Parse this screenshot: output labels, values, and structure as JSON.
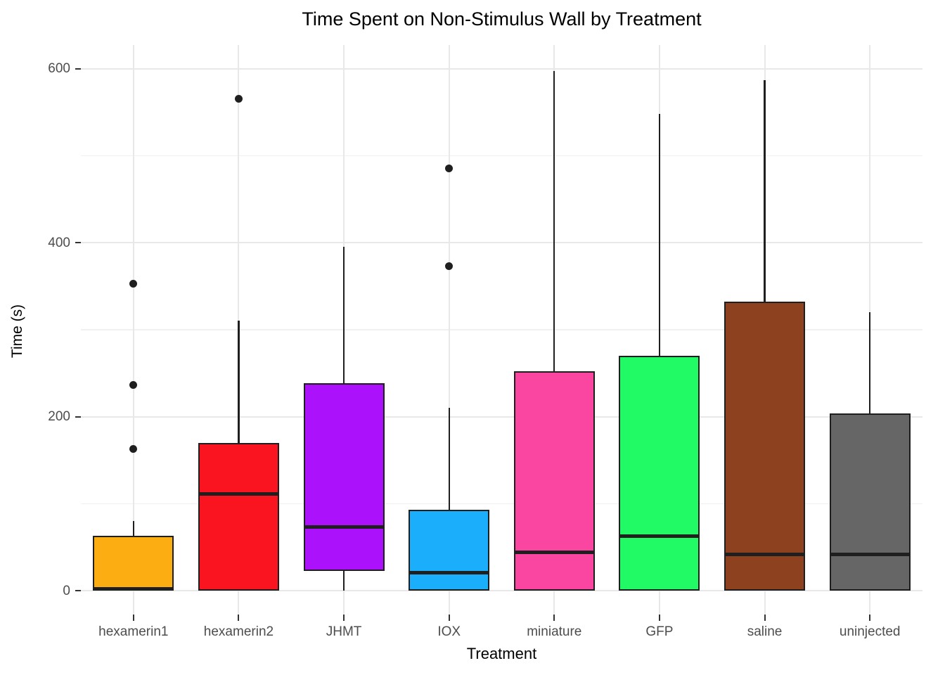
{
  "chart_data": {
    "type": "boxplot",
    "title": "Time Spent on Non-Stimulus Wall by Treatment",
    "xlabel": "Treatment",
    "ylabel": "Time (s)",
    "ylim": [
      -30,
      627
    ],
    "yticks": [
      0,
      200,
      400,
      600
    ],
    "yminor": [
      100,
      300,
      500
    ],
    "grid": true,
    "legend": "none",
    "categories": [
      "hexamerin1",
      "hexamerin2",
      "JHMT",
      "IOX",
      "miniature",
      "GFP",
      "saline",
      "uninjected"
    ],
    "series": [
      {
        "category": "hexamerin1",
        "color": "#FBAD12",
        "q1": 0,
        "median": 2,
        "q3": 63,
        "whisker_low": 0,
        "whisker_high": 80,
        "outliers": [
          353,
          236,
          163
        ]
      },
      {
        "category": "hexamerin2",
        "color": "#FA1420",
        "q1": 0,
        "median": 111,
        "q3": 170,
        "whisker_low": 0,
        "whisker_high": 310,
        "outliers": [
          565
        ]
      },
      {
        "category": "JHMT",
        "color": "#AC11FB",
        "q1": 23,
        "median": 73,
        "q3": 238,
        "whisker_low": 0,
        "whisker_high": 395,
        "outliers": []
      },
      {
        "category": "IOX",
        "color": "#1AAEFB",
        "q1": 0,
        "median": 21,
        "q3": 93,
        "whisker_low": 0,
        "whisker_high": 210,
        "outliers": [
          485,
          373
        ]
      },
      {
        "category": "miniature",
        "color": "#FA46A1",
        "q1": 0,
        "median": 44,
        "q3": 252,
        "whisker_low": 0,
        "whisker_high": 597,
        "outliers": []
      },
      {
        "category": "GFP",
        "color": "#21FA65",
        "q1": 0,
        "median": 63,
        "q3": 270,
        "whisker_low": 0,
        "whisker_high": 548,
        "outliers": []
      },
      {
        "category": "saline",
        "color": "#8E411F",
        "q1": 0,
        "median": 42,
        "q3": 332,
        "whisker_low": 0,
        "whisker_high": 587,
        "outliers": []
      },
      {
        "category": "uninjected",
        "color": "#666666",
        "q1": 0,
        "median": 42,
        "q3": 204,
        "whisker_low": 0,
        "whisker_high": 320,
        "outliers": []
      }
    ],
    "style_colors": {
      "box_border": "#1f1f1f",
      "grid_major": "#e8e8e8",
      "grid_minor": "#f0f0f0",
      "tick_label": "#4d4d4d",
      "text": "#000000"
    }
  }
}
